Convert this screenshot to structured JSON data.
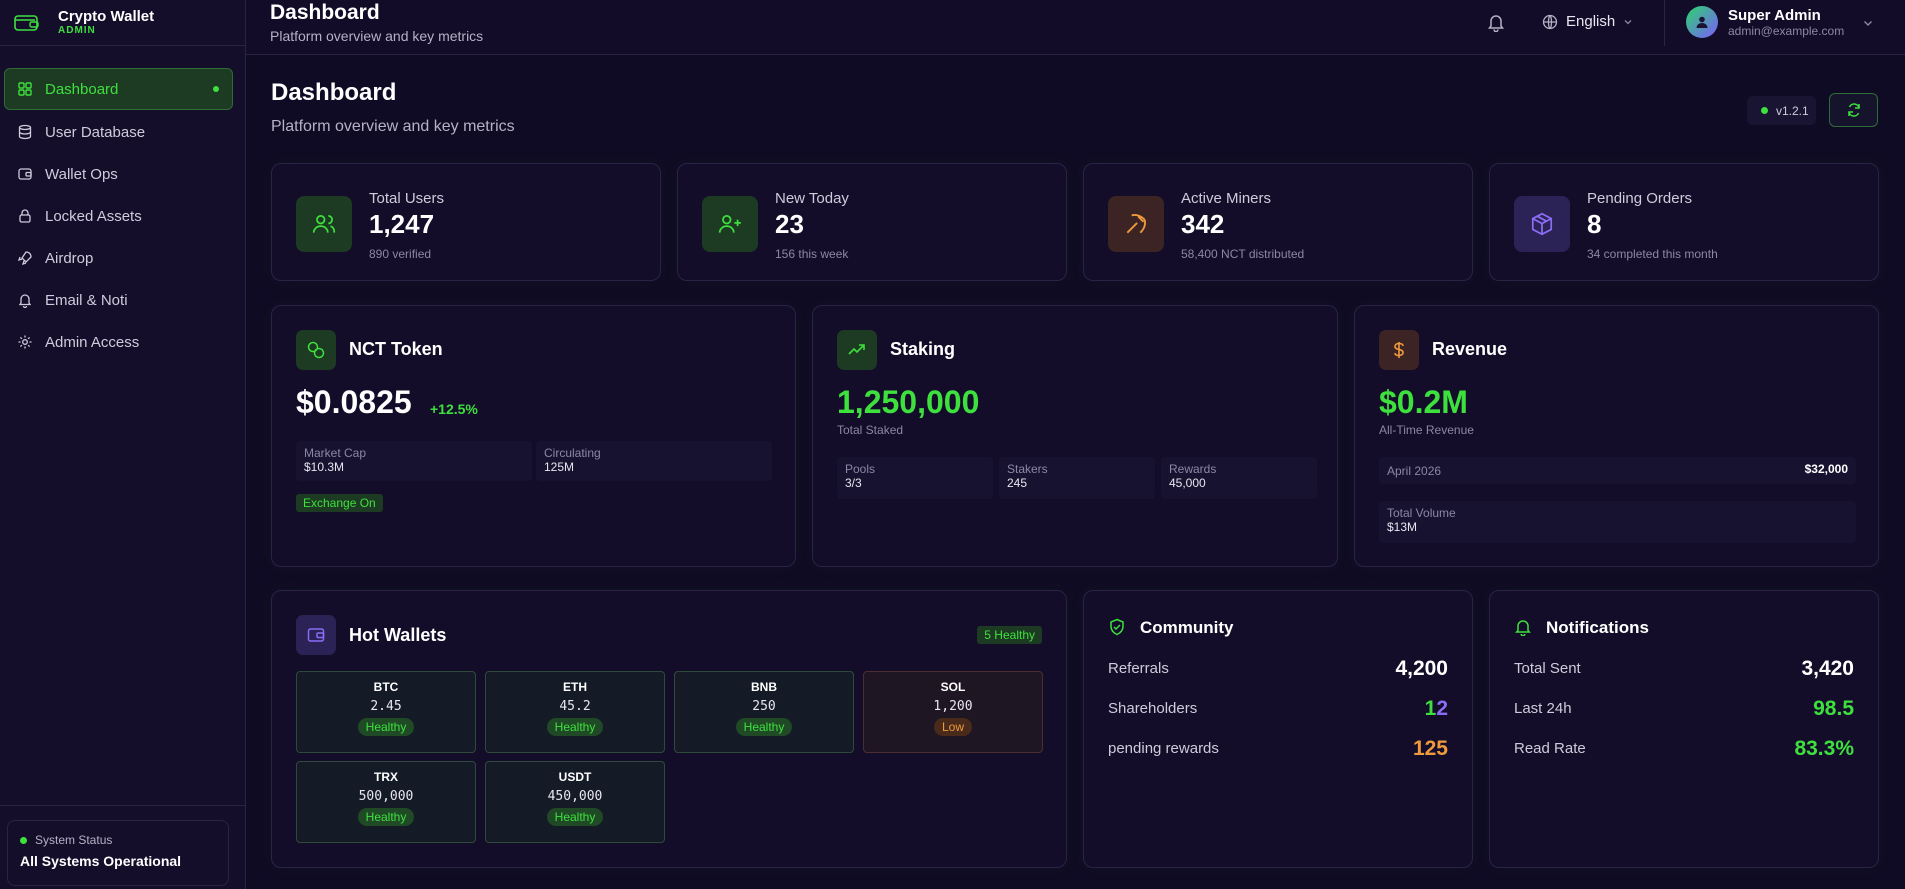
{
  "brand": {
    "title": "Crypto Wallet",
    "sub": "ADMIN"
  },
  "sidebar": {
    "items": [
      {
        "label": "Dashboard",
        "icon": "grid-icon",
        "active": true
      },
      {
        "label": "User Database",
        "icon": "database-icon"
      },
      {
        "label": "Wallet Ops",
        "icon": "wallet-icon"
      },
      {
        "label": "Locked Assets",
        "icon": "lock-icon"
      },
      {
        "label": "Airdrop",
        "icon": "rocket-icon"
      },
      {
        "label": "Email & Noti",
        "icon": "bell-icon"
      },
      {
        "label": "Admin Access",
        "icon": "gear-icon"
      }
    ],
    "status_label": "System Status",
    "status_value": "All Systems Operational"
  },
  "topbar": {
    "title": "Dashboard",
    "subtitle": "Platform overview and key metrics",
    "language": "English",
    "user_name": "Super Admin",
    "user_email": "admin@example.com"
  },
  "page": {
    "title": "Dashboard",
    "subtitle": "Platform overview and key metrics",
    "version": "v1.2.1"
  },
  "stats": [
    {
      "label": "Total Users",
      "value": "1,247",
      "sub": "890 verified"
    },
    {
      "label": "New Today",
      "value": "23",
      "sub": "156 this week"
    },
    {
      "label": "Active Miners",
      "value": "342",
      "sub": "58,400 NCT distributed"
    },
    {
      "label": "Pending Orders",
      "value": "8",
      "sub": "34 completed this month"
    }
  ],
  "token": {
    "title": "NCT Token",
    "price": "$0.0825",
    "change": "+12.5%",
    "market_cap_label": "Market Cap",
    "market_cap": "$10.3M",
    "circulating_label": "Circulating",
    "circulating": "125M",
    "exchange": "Exchange On"
  },
  "staking": {
    "title": "Staking",
    "total": "1,250,000",
    "total_label": "Total Staked",
    "pools_label": "Pools",
    "pools": "3/3",
    "stakers_label": "Stakers",
    "stakers": "245",
    "rewards_label": "Rewards",
    "rewards": "45,000"
  },
  "revenue": {
    "title": "Revenue",
    "total": "$0.2M",
    "total_label": "All-Time Revenue",
    "month_label": "April 2026",
    "month_value": "$32,000",
    "volume_label": "Total Volume",
    "volume": "$13M"
  },
  "hot_wallets": {
    "title": "Hot Wallets",
    "badge": "5 Healthy",
    "wallets": [
      {
        "symbol": "BTC",
        "amount": "2.45",
        "status": "Healthy"
      },
      {
        "symbol": "ETH",
        "amount": "45.2",
        "status": "Healthy"
      },
      {
        "symbol": "BNB",
        "amount": "250",
        "status": "Healthy"
      },
      {
        "symbol": "SOL",
        "amount": "1,200",
        "status": "Low"
      },
      {
        "symbol": "TRX",
        "amount": "500,000",
        "status": "Healthy"
      },
      {
        "symbol": "USDT",
        "amount": "450,000",
        "status": "Healthy"
      }
    ]
  },
  "community": {
    "title": "Community",
    "rows": [
      {
        "label": "Referrals",
        "value": "4,200"
      },
      {
        "label": "Shareholders",
        "value_a": "1",
        "value_b": "2"
      },
      {
        "label": "pending rewards",
        "value": "125"
      }
    ]
  },
  "notifications": {
    "title": "Notifications",
    "rows": [
      {
        "label": "Total Sent",
        "value": "3,420"
      },
      {
        "label": "Last 24h",
        "value": "98.5"
      },
      {
        "label": "Read Rate",
        "value": "83.3%"
      }
    ]
  },
  "colors": {
    "accent": "#3ee03e",
    "orange": "#f09a3e",
    "purple": "#8b6cf6",
    "bg": "#100b24"
  }
}
